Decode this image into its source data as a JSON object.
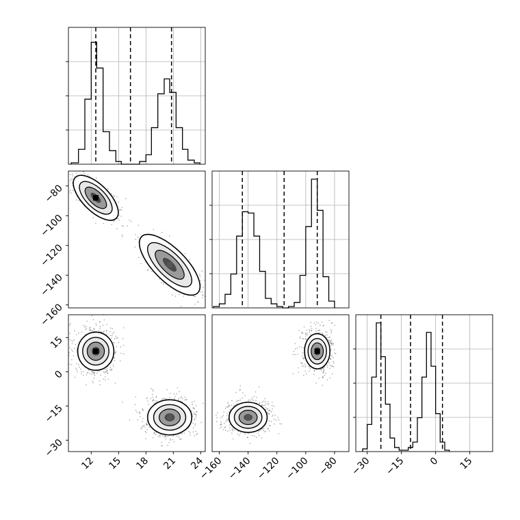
{
  "chart_data": [
    {
      "type": "histogram",
      "panel": "x-marginal",
      "xlim": [
        9.5,
        24.5
      ],
      "x_ticks": [
        "12",
        "15",
        "18",
        "21",
        "24"
      ],
      "grid": true,
      "bins": [
        {
          "x0": 9.8,
          "x1": 10.6,
          "count": 0.01
        },
        {
          "x0": 10.6,
          "x1": 11.3,
          "count": 0.11
        },
        {
          "x0": 11.3,
          "x1": 12.0,
          "count": 0.48
        },
        {
          "x0": 12.0,
          "x1": 12.6,
          "count": 0.9
        },
        {
          "x0": 12.6,
          "x1": 13.3,
          "count": 0.71
        },
        {
          "x0": 13.3,
          "x1": 14.0,
          "count": 0.24
        },
        {
          "x0": 14.0,
          "x1": 14.7,
          "count": 0.1
        },
        {
          "x0": 14.7,
          "x1": 15.3,
          "count": 0.02
        },
        {
          "x0": 15.3,
          "x1": 16.0,
          "count": 0.0
        },
        {
          "x0": 16.0,
          "x1": 16.6,
          "count": 0.0
        },
        {
          "x0": 16.6,
          "x1": 17.3,
          "count": 0.0
        },
        {
          "x0": 17.3,
          "x1": 18.0,
          "count": 0.02
        },
        {
          "x0": 18.0,
          "x1": 18.6,
          "count": 0.07
        },
        {
          "x0": 18.6,
          "x1": 19.3,
          "count": 0.27
        },
        {
          "x0": 19.3,
          "x1": 20.0,
          "count": 0.52
        },
        {
          "x0": 20.0,
          "x1": 20.6,
          "count": 0.63
        },
        {
          "x0": 20.6,
          "x1": 21.3,
          "count": 0.53
        },
        {
          "x0": 21.3,
          "x1": 22.0,
          "count": 0.27
        },
        {
          "x0": 22.0,
          "x1": 22.6,
          "count": 0.11
        },
        {
          "x0": 22.6,
          "x1": 23.3,
          "count": 0.03
        },
        {
          "x0": 23.3,
          "x1": 23.9,
          "count": 0.01
        }
      ],
      "quantile_lines": [
        12.5,
        16.3,
        20.8
      ]
    },
    {
      "type": "histogram",
      "panel": "y-marginal",
      "xlim": [
        -165,
        -70
      ],
      "x_ticks": [
        "−160",
        "−140",
        "−120",
        "−100",
        "−80"
      ],
      "grid": true,
      "bins": [
        {
          "x0": -164,
          "x1": -160,
          "count": 0.01
        },
        {
          "x0": -160,
          "x1": -156,
          "count": 0.03
        },
        {
          "x0": -156,
          "x1": -152,
          "count": 0.1
        },
        {
          "x0": -152,
          "x1": -148,
          "count": 0.25
        },
        {
          "x0": -148,
          "x1": -144,
          "count": 0.53
        },
        {
          "x0": -144,
          "x1": -140,
          "count": 0.71
        },
        {
          "x0": -140,
          "x1": -136,
          "count": 0.7
        },
        {
          "x0": -136,
          "x1": -132,
          "count": 0.53
        },
        {
          "x0": -132,
          "x1": -128,
          "count": 0.27
        },
        {
          "x0": -128,
          "x1": -124,
          "count": 0.07
        },
        {
          "x0": -124,
          "x1": -120,
          "count": 0.03
        },
        {
          "x0": -120,
          "x1": -116,
          "count": 0.01
        },
        {
          "x0": -116,
          "x1": -112,
          "count": 0.0
        },
        {
          "x0": -112,
          "x1": -108,
          "count": 0.01
        },
        {
          "x0": -108,
          "x1": -104,
          "count": 0.04
        },
        {
          "x0": -104,
          "x1": -100,
          "count": 0.24
        },
        {
          "x0": -100,
          "x1": -96,
          "count": 0.6
        },
        {
          "x0": -96,
          "x1": -92,
          "count": 0.95
        },
        {
          "x0": -92,
          "x1": -88,
          "count": 0.72
        },
        {
          "x0": -88,
          "x1": -84,
          "count": 0.23
        },
        {
          "x0": -84,
          "x1": -80,
          "count": 0.05
        }
      ],
      "quantile_lines": [
        -144,
        -115,
        -92
      ]
    },
    {
      "type": "histogram",
      "panel": "z-marginal",
      "xlim": [
        -35,
        25
      ],
      "x_ticks": [
        "−30",
        "−15",
        "0",
        "15"
      ],
      "grid": true,
      "bins": [
        {
          "x0": -32,
          "x1": -30,
          "count": 0.02
        },
        {
          "x0": -30,
          "x1": -28,
          "count": 0.2
        },
        {
          "x0": -28,
          "x1": -26,
          "count": 0.55
        },
        {
          "x0": -26,
          "x1": -24,
          "count": 0.95
        },
        {
          "x0": -24,
          "x1": -22,
          "count": 0.7
        },
        {
          "x0": -22,
          "x1": -20,
          "count": 0.35
        },
        {
          "x0": -20,
          "x1": -18,
          "count": 0.1
        },
        {
          "x0": -18,
          "x1": -16,
          "count": 0.03
        },
        {
          "x0": -16,
          "x1": -14,
          "count": 0.01
        },
        {
          "x0": -14,
          "x1": -12,
          "count": 0.01
        },
        {
          "x0": -12,
          "x1": -10,
          "count": 0.03
        },
        {
          "x0": -10,
          "x1": -8,
          "count": 0.07
        },
        {
          "x0": -8,
          "x1": -6,
          "count": 0.25
        },
        {
          "x0": -6,
          "x1": -4,
          "count": 0.55
        },
        {
          "x0": -4,
          "x1": -2,
          "count": 0.88
        },
        {
          "x0": -2,
          "x1": 0,
          "count": 0.63
        },
        {
          "x0": 0,
          "x1": 2,
          "count": 0.28
        },
        {
          "x0": 2,
          "x1": 4,
          "count": 0.07
        },
        {
          "x0": 4,
          "x1": 6,
          "count": 0.01
        }
      ],
      "quantile_lines": [
        -24,
        -11,
        3
      ]
    },
    {
      "type": "scatter",
      "panel": "y-vs-x",
      "xlim": [
        9.5,
        24.5
      ],
      "ylim": [
        -162,
        -70
      ],
      "y_ticks": [
        "−80",
        "−100",
        "−120",
        "−140",
        "−160"
      ],
      "clusters": [
        {
          "center": [
            12.5,
            -88
          ],
          "spread": [
            0.8,
            4.5
          ],
          "rotation": -45
        },
        {
          "center": [
            20.6,
            -133
          ],
          "spread": [
            1.1,
            5.5
          ],
          "rotation": -45
        }
      ]
    },
    {
      "type": "scatter",
      "panel": "z-vs-x",
      "xlim": [
        9.5,
        24.5
      ],
      "ylim": [
        -35,
        25
      ],
      "y_ticks": [
        "15",
        "0",
        "−15",
        "−30"
      ],
      "clusters": [
        {
          "center": [
            12.5,
            9
          ],
          "spread": [
            0.9,
            3.8
          ],
          "rotation": 0
        },
        {
          "center": [
            20.6,
            -20
          ],
          "spread": [
            1.1,
            3.5
          ],
          "rotation": 0
        }
      ]
    },
    {
      "type": "scatter",
      "panel": "z-vs-y",
      "xlim": [
        -165,
        -70
      ],
      "ylim": [
        -35,
        25
      ],
      "clusters": [
        {
          "center": [
            -92,
            9
          ],
          "spread": [
            4.0,
            3.5
          ],
          "rotation": 0
        },
        {
          "center": [
            -140,
            -20
          ],
          "spread": [
            6.0,
            3.0
          ],
          "rotation": 0
        }
      ]
    }
  ]
}
